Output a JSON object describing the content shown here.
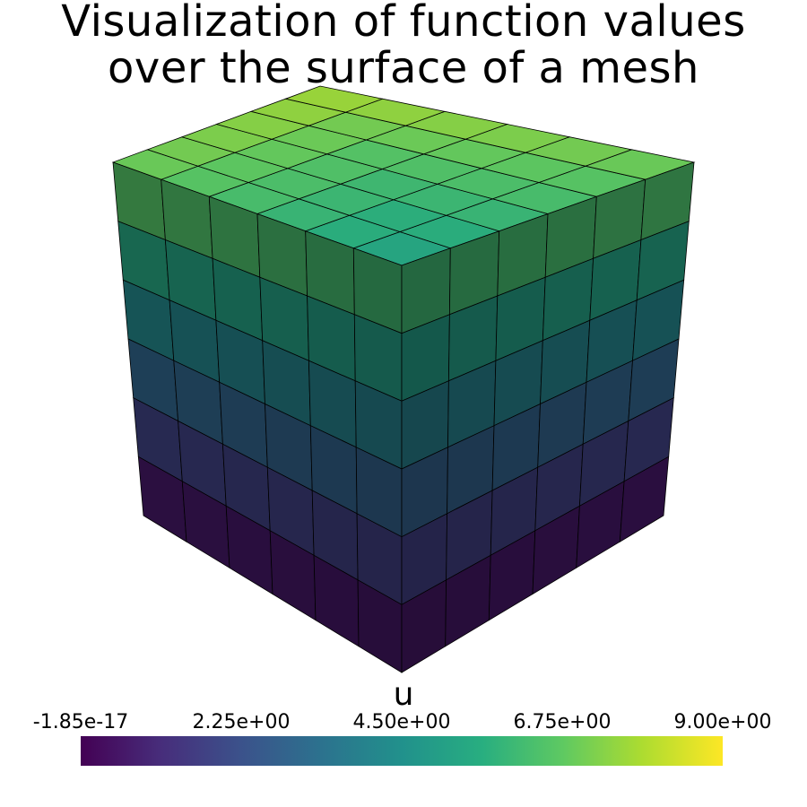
{
  "title": [
    "Visualization of function values",
    "over the surface of a mesh"
  ],
  "scalar_bar": {
    "title": "u",
    "tick_labels": [
      "-1.85e-17",
      "2.25e+00",
      "4.50e+00",
      "6.75e+00",
      "9.00e+00"
    ],
    "range": [
      -1.85e-17,
      9.0
    ],
    "colormap": "viridis",
    "colors": [
      "#440154",
      "#472d7b",
      "#3b528b",
      "#2c728e",
      "#21918c",
      "#28ae80",
      "#5ec962",
      "#addc30",
      "#fde725"
    ]
  },
  "mesh": {
    "type": "cube",
    "cells_per_edge": 6,
    "edge_color": "#000000"
  }
}
